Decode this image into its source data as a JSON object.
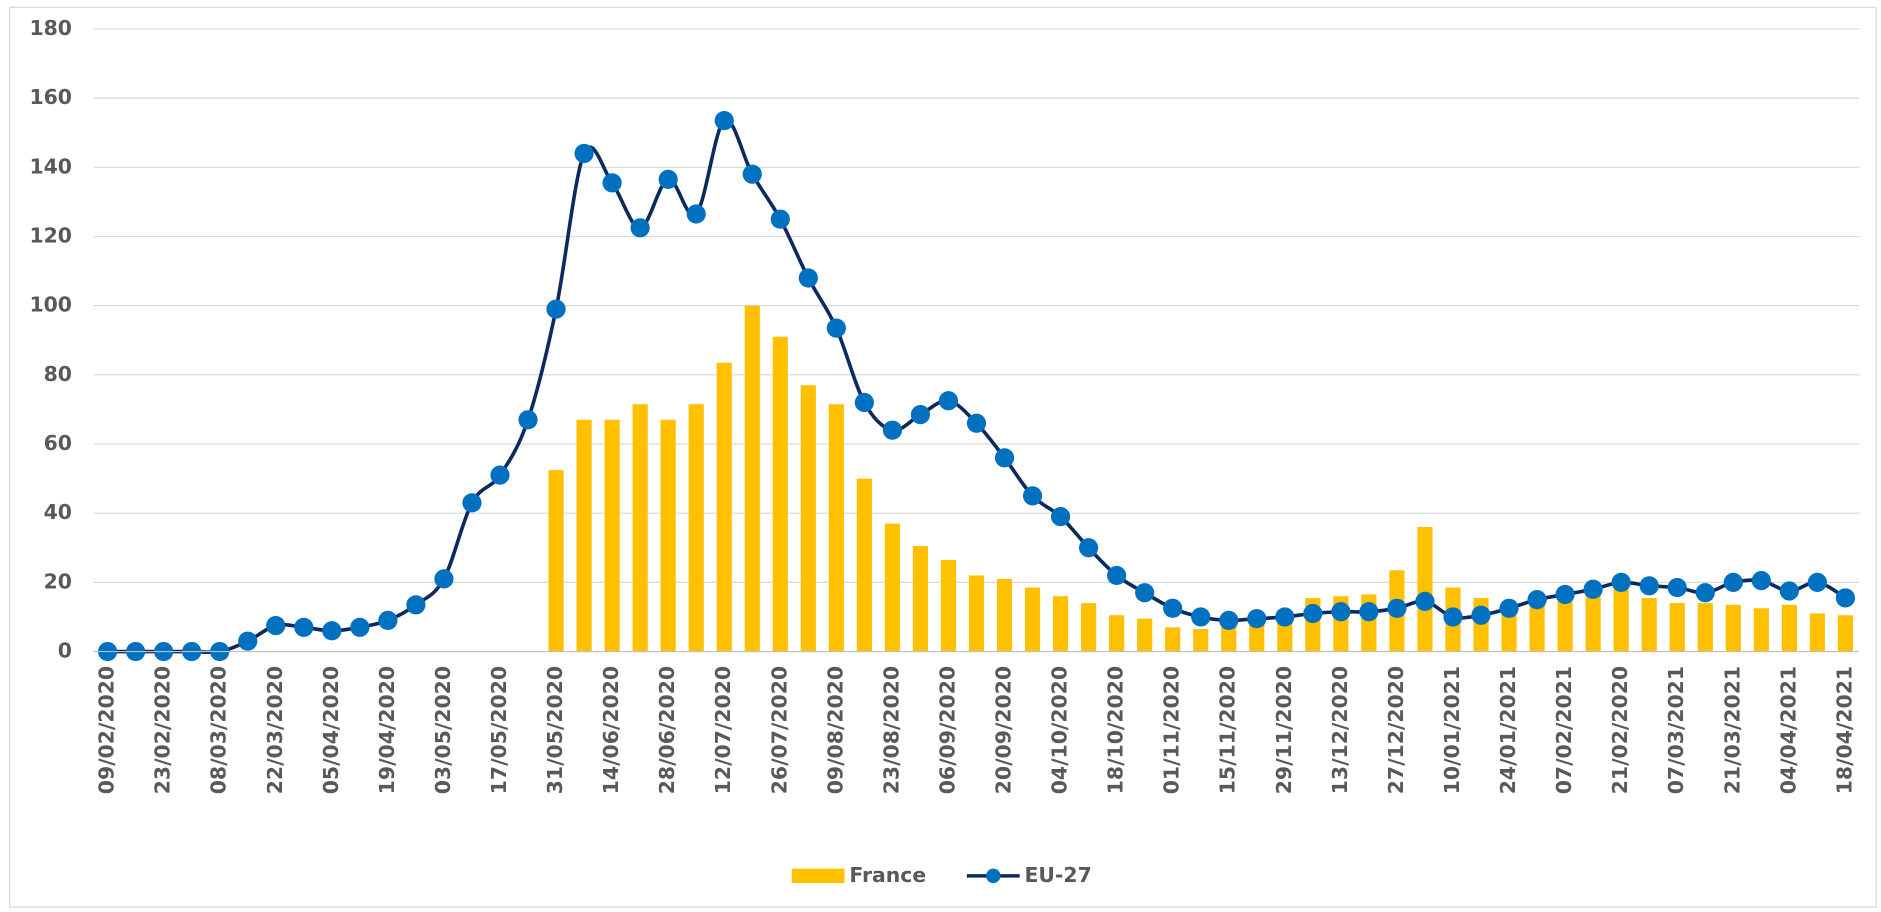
{
  "chart_data": {
    "type": "bar-line",
    "categories": [
      "09/02/2020",
      null,
      "23/02/2020",
      null,
      "08/03/2020",
      null,
      "22/03/2020",
      null,
      "05/04/2020",
      null,
      "19/04/2020",
      null,
      "03/05/2020",
      null,
      "17/05/2020",
      null,
      "31/05/2020",
      null,
      "14/06/2020",
      null,
      "28/06/2020",
      null,
      "12/07/2020",
      null,
      "26/07/2020",
      null,
      "09/08/2020",
      null,
      "23/08/2020",
      null,
      "06/09/2020",
      null,
      "20/09/2020",
      null,
      "04/10/2020",
      null,
      "18/10/2020",
      null,
      "01/11/2020",
      null,
      "15/11/2020",
      null,
      "29/11/2020",
      null,
      "13/12/2020",
      null,
      "27/12/2020",
      null,
      "10/01/2021",
      null,
      "24/01/2021",
      null,
      "07/02/2021",
      null,
      "21/02/2020",
      null,
      "07/03/2021",
      null,
      "21/03/2021",
      null,
      "04/04/2021",
      null,
      "18/04/2021"
    ],
    "series": [
      {
        "name": "France",
        "type": "bar",
        "color": "#ffc000",
        "values": [
          null,
          null,
          null,
          null,
          null,
          null,
          null,
          null,
          null,
          null,
          null,
          null,
          null,
          null,
          null,
          null,
          52.5,
          67,
          67,
          71.5,
          67,
          71.5,
          83.5,
          100,
          91,
          77,
          71.5,
          50,
          37,
          30.5,
          26.5,
          22,
          21,
          18.5,
          16,
          14,
          10.5,
          9.5,
          7,
          6.5,
          8,
          8,
          8.5,
          15.5,
          16,
          16.5,
          23.5,
          36,
          18.5,
          15.5,
          11,
          14,
          14.5,
          17,
          18,
          15.5,
          14,
          14,
          13.5,
          12.5,
          13.5,
          11,
          10.5
        ]
      },
      {
        "name": "EU-27",
        "type": "line",
        "color": "#0d2a5e",
        "marker_color": "#0070c0",
        "values": [
          0,
          0,
          0,
          0,
          0,
          3,
          7.5,
          7,
          6,
          7,
          9,
          13.5,
          21,
          43,
          51,
          67,
          99,
          144,
          135.5,
          122.5,
          136.5,
          126.5,
          153.5,
          138,
          125,
          108,
          93.5,
          72,
          64,
          68.5,
          72.5,
          66,
          56,
          45,
          39,
          30,
          22,
          17,
          12.5,
          10,
          9,
          9.5,
          10,
          11,
          11.5,
          11.5,
          12.5,
          14.5,
          10,
          10.5,
          12.5,
          15,
          16.5,
          18,
          20,
          19,
          18.5,
          17,
          20,
          20.5,
          17.5,
          20,
          15.5
        ]
      }
    ],
    "ylim": [
      0,
      180
    ],
    "yticks": [
      0,
      20,
      40,
      60,
      80,
      100,
      120,
      140,
      160,
      180
    ],
    "grid": true,
    "legend": "bottom"
  }
}
